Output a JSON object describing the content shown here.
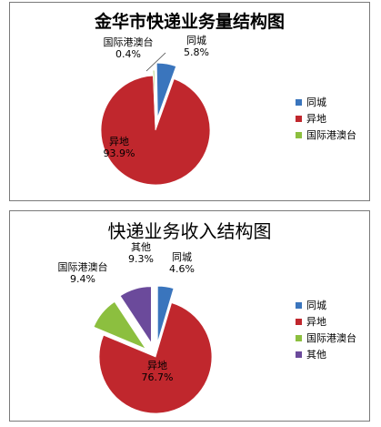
{
  "chart_data": [
    {
      "type": "pie",
      "title": "金华市快递业务量结构图",
      "categories": [
        "同城",
        "异地",
        "国际港澳台"
      ],
      "values": [
        5.8,
        93.9,
        0.4
      ],
      "value_labels": [
        "5.8%",
        "93.9%",
        "0.4%"
      ],
      "colors": [
        "#3a75bd",
        "#c0272d",
        "#8cbf3f"
      ],
      "legend": "right",
      "exploded": true
    },
    {
      "type": "pie",
      "title": "快递业务收入结构图",
      "categories": [
        "同城",
        "异地",
        "国际港澳台",
        "其他"
      ],
      "values": [
        4.6,
        76.7,
        9.4,
        9.3
      ],
      "value_labels": [
        "4.6%",
        "76.7%",
        "9.4%",
        "9.3%"
      ],
      "colors": [
        "#3a75bd",
        "#c0272d",
        "#8cbf3f",
        "#6b4a9b"
      ],
      "legend": "right",
      "exploded": true
    }
  ]
}
